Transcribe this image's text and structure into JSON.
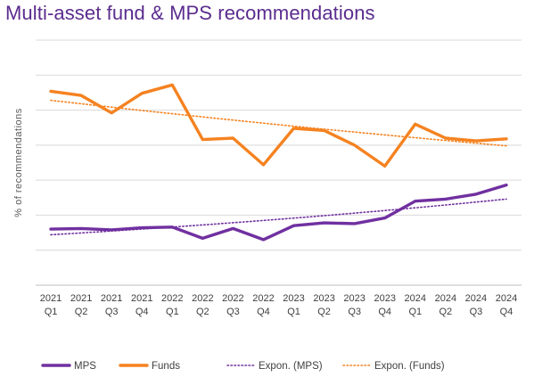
{
  "title": "Multi-asset fund & MPS recommendations",
  "chart_data": {
    "type": "line",
    "title": "Multi-asset fund & MPS recommendations",
    "ylabel": "% of recommendations",
    "xlabel": "",
    "y_ticks_labeled": false,
    "grid": "horizontal",
    "legend_position": "bottom",
    "ylim": [
      0,
      35
    ],
    "categories": [
      [
        "2021",
        "Q1"
      ],
      [
        "2021",
        "Q2"
      ],
      [
        "2021",
        "Q3"
      ],
      [
        "2021",
        "Q4"
      ],
      [
        "2022",
        "Q1"
      ],
      [
        "2022",
        "Q2"
      ],
      [
        "2022",
        "Q3"
      ],
      [
        "2022",
        "Q4"
      ],
      [
        "2023",
        "Q1"
      ],
      [
        "2023",
        "Q2"
      ],
      [
        "2023",
        "Q3"
      ],
      [
        "2023",
        "Q4"
      ],
      [
        "2024",
        "Q1"
      ],
      [
        "2024",
        "Q2"
      ],
      [
        "2024",
        "Q3"
      ],
      [
        "2024",
        "Q4"
      ]
    ],
    "series": [
      {
        "name": "MPS",
        "color": "#7030a0",
        "style": "solid",
        "values": [
          8.0,
          8.1,
          7.9,
          8.2,
          8.3,
          6.7,
          8.1,
          6.5,
          8.5,
          8.9,
          8.8,
          9.6,
          12.0,
          12.3,
          13.0,
          14.3
        ]
      },
      {
        "name": "Funds",
        "color": "#f58220",
        "style": "solid",
        "values": [
          27.7,
          27.1,
          24.6,
          27.4,
          28.6,
          20.8,
          21.0,
          17.2,
          22.4,
          22.1,
          20.0,
          17.0,
          23.0,
          21.0,
          20.6,
          20.9
        ]
      }
    ],
    "trendlines": [
      {
        "name": "Expon. (MPS)",
        "color": "#7030a0",
        "style": "dotted",
        "start": 7.2,
        "end": 12.3
      },
      {
        "name": "Expon. (Funds)",
        "color": "#f58220",
        "style": "dotted",
        "start": 26.4,
        "end": 19.9
      }
    ]
  }
}
